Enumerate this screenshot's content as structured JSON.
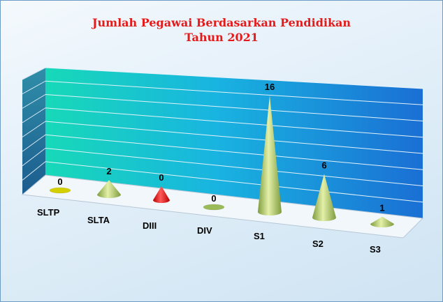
{
  "chart_data": {
    "type": "bar",
    "title": "Jumlah Pegawai Berdasarkan Pendidikan",
    "subtitle": "Tahun 2021",
    "xlabel": "",
    "ylabel": "",
    "categories": [
      "SLTP",
      "SLTA",
      "DIII",
      "DIV",
      "S1",
      "S2",
      "S3"
    ],
    "values": [
      0,
      2,
      0,
      0,
      16,
      6,
      1
    ],
    "ylim": [
      0,
      16
    ],
    "shape": "cone",
    "grid": true,
    "legend": "none",
    "colors": {
      "default": "#9bbb59",
      "highlight": "#ff0000",
      "sltp": "#d4d000",
      "title": "#e41b1b",
      "wall_start": "#17d9b8",
      "wall_end": "#1a74d6"
    },
    "highlight_index": 2
  }
}
